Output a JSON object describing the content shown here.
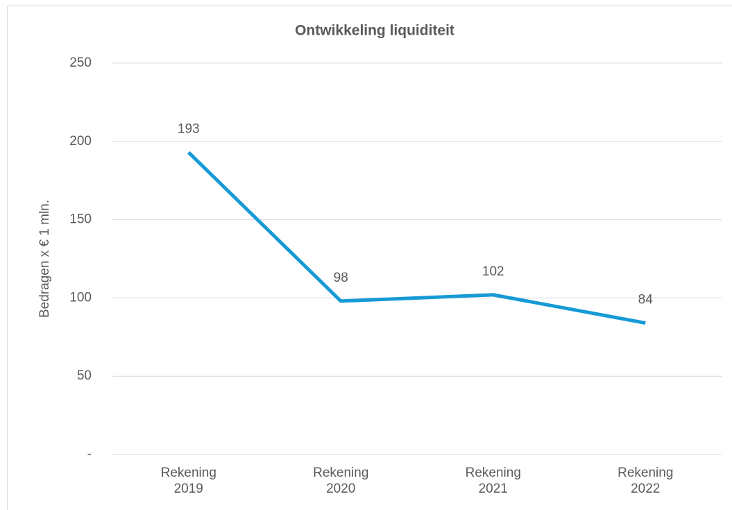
{
  "chart_data": {
    "type": "line",
    "title": "Ontwikkeling liquiditeit",
    "y_label": "Bedragen  x € 1 mln.",
    "categories": [
      "Rekening 2019",
      "Rekening 2020",
      "Rekening 2021",
      "Rekening 2022"
    ],
    "values": [
      193,
      98,
      102,
      84
    ],
    "color": "#169ad6",
    "ylim": [
      0,
      250
    ],
    "yticks": [
      {
        "value": 0,
        "label": "-"
      },
      50,
      100,
      150,
      200,
      250
    ],
    "grid": true
  }
}
